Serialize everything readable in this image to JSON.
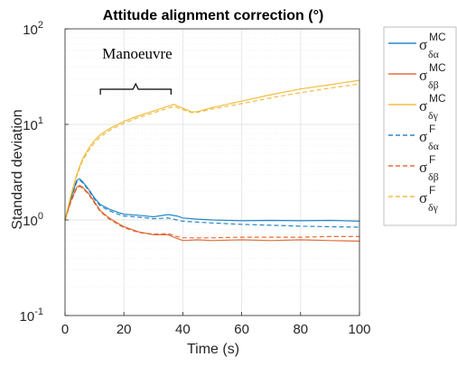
{
  "chart_data": {
    "type": "line",
    "title": "Attitude alignment correction (°)",
    "xlabel": "Time (s)",
    "ylabel": "Standard deviation",
    "xlim": [
      0,
      100
    ],
    "ylim": [
      0.1,
      100
    ],
    "yscale": "log",
    "grid": true,
    "legend_position": "outside-right",
    "x_ticks": [
      "0",
      "20",
      "40",
      "60",
      "80",
      "100"
    ],
    "y_ticks": [
      {
        "base": "10",
        "exp": "-1"
      },
      {
        "base": "10",
        "exp": "0"
      },
      {
        "base": "10",
        "exp": "1"
      },
      {
        "base": "10",
        "exp": "2"
      }
    ],
    "annotation": {
      "text": "Manoeuvre",
      "x_start": 12,
      "x_end": 36
    },
    "series": [
      {
        "name": "σ δα MC",
        "sym": "σ",
        "sub": "δα",
        "sup": "MC",
        "color": "#0072BD",
        "dash": "solid",
        "x": [
          0,
          2,
          4,
          5,
          6,
          8,
          10,
          12,
          15,
          18,
          20,
          25,
          30,
          35,
          38,
          40,
          45,
          50,
          60,
          70,
          80,
          90,
          100
        ],
        "values": [
          1.0,
          1.7,
          2.6,
          2.7,
          2.5,
          2.1,
          1.7,
          1.45,
          1.3,
          1.2,
          1.15,
          1.12,
          1.08,
          1.14,
          1.1,
          1.05,
          1.02,
          1.0,
          0.98,
          0.99,
          0.98,
          0.99,
          0.97
        ]
      },
      {
        "name": "σ δβ MC",
        "sym": "σ",
        "sub": "δβ",
        "sup": "MC",
        "color": "#D95319",
        "dash": "solid",
        "x": [
          0,
          2,
          4,
          5,
          6,
          8,
          10,
          12,
          15,
          18,
          20,
          25,
          30,
          35,
          38,
          40,
          45,
          50,
          60,
          70,
          80,
          90,
          100
        ],
        "values": [
          1.0,
          1.6,
          2.2,
          2.3,
          2.2,
          1.9,
          1.55,
          1.25,
          1.05,
          0.92,
          0.85,
          0.75,
          0.7,
          0.7,
          0.64,
          0.61,
          0.62,
          0.61,
          0.62,
          0.61,
          0.62,
          0.61,
          0.6
        ]
      },
      {
        "name": "σ δγ MC",
        "sym": "σ",
        "sub": "δγ",
        "sup": "MC",
        "color": "#EDB120",
        "dash": "solid",
        "x": [
          0,
          2,
          4,
          6,
          8,
          10,
          12,
          15,
          18,
          20,
          25,
          30,
          35,
          37,
          40,
          43,
          45,
          50,
          60,
          70,
          80,
          90,
          100
        ],
        "values": [
          1.0,
          1.8,
          3.0,
          4.4,
          5.6,
          6.8,
          7.8,
          9.0,
          10.0,
          10.8,
          12.3,
          13.8,
          15.5,
          16.2,
          14.8,
          13.5,
          13.6,
          15.0,
          17.5,
          20.5,
          23.5,
          26.0,
          29.0
        ]
      },
      {
        "name": "σ δα F",
        "sym": "σ",
        "sub": "δα",
        "sup": "F",
        "color": "#0072BD",
        "dash": "dashed",
        "x": [
          0,
          2,
          4,
          5,
          6,
          8,
          10,
          12,
          15,
          18,
          20,
          25,
          30,
          35,
          38,
          40,
          45,
          50,
          60,
          70,
          80,
          90,
          100
        ],
        "values": [
          1.0,
          1.65,
          2.5,
          2.6,
          2.45,
          2.05,
          1.65,
          1.4,
          1.25,
          1.15,
          1.1,
          1.07,
          1.03,
          1.05,
          1.0,
          0.97,
          0.95,
          0.93,
          0.9,
          0.88,
          0.86,
          0.85,
          0.84
        ]
      },
      {
        "name": "σ δβ F",
        "sym": "σ",
        "sub": "δβ",
        "sup": "F",
        "color": "#D95319",
        "dash": "dashed",
        "x": [
          0,
          2,
          4,
          5,
          6,
          8,
          10,
          12,
          15,
          18,
          20,
          25,
          30,
          35,
          38,
          40,
          45,
          50,
          60,
          70,
          80,
          90,
          100
        ],
        "values": [
          1.0,
          1.55,
          2.15,
          2.25,
          2.15,
          1.85,
          1.5,
          1.22,
          1.02,
          0.9,
          0.83,
          0.74,
          0.71,
          0.72,
          0.67,
          0.65,
          0.65,
          0.65,
          0.66,
          0.66,
          0.66,
          0.67,
          0.67
        ]
      },
      {
        "name": "σ δγ F",
        "sym": "σ",
        "sub": "δγ",
        "sup": "F",
        "color": "#EDB120",
        "dash": "dashed",
        "x": [
          0,
          2,
          4,
          6,
          8,
          10,
          12,
          15,
          18,
          20,
          25,
          30,
          35,
          37,
          40,
          43,
          45,
          50,
          60,
          70,
          80,
          90,
          100
        ],
        "values": [
          1.0,
          1.75,
          2.9,
          4.2,
          5.3,
          6.4,
          7.4,
          8.6,
          9.6,
          10.3,
          11.8,
          13.2,
          14.8,
          15.4,
          14.3,
          13.3,
          13.4,
          14.5,
          16.5,
          19.0,
          21.5,
          24.0,
          26.5
        ]
      }
    ]
  }
}
